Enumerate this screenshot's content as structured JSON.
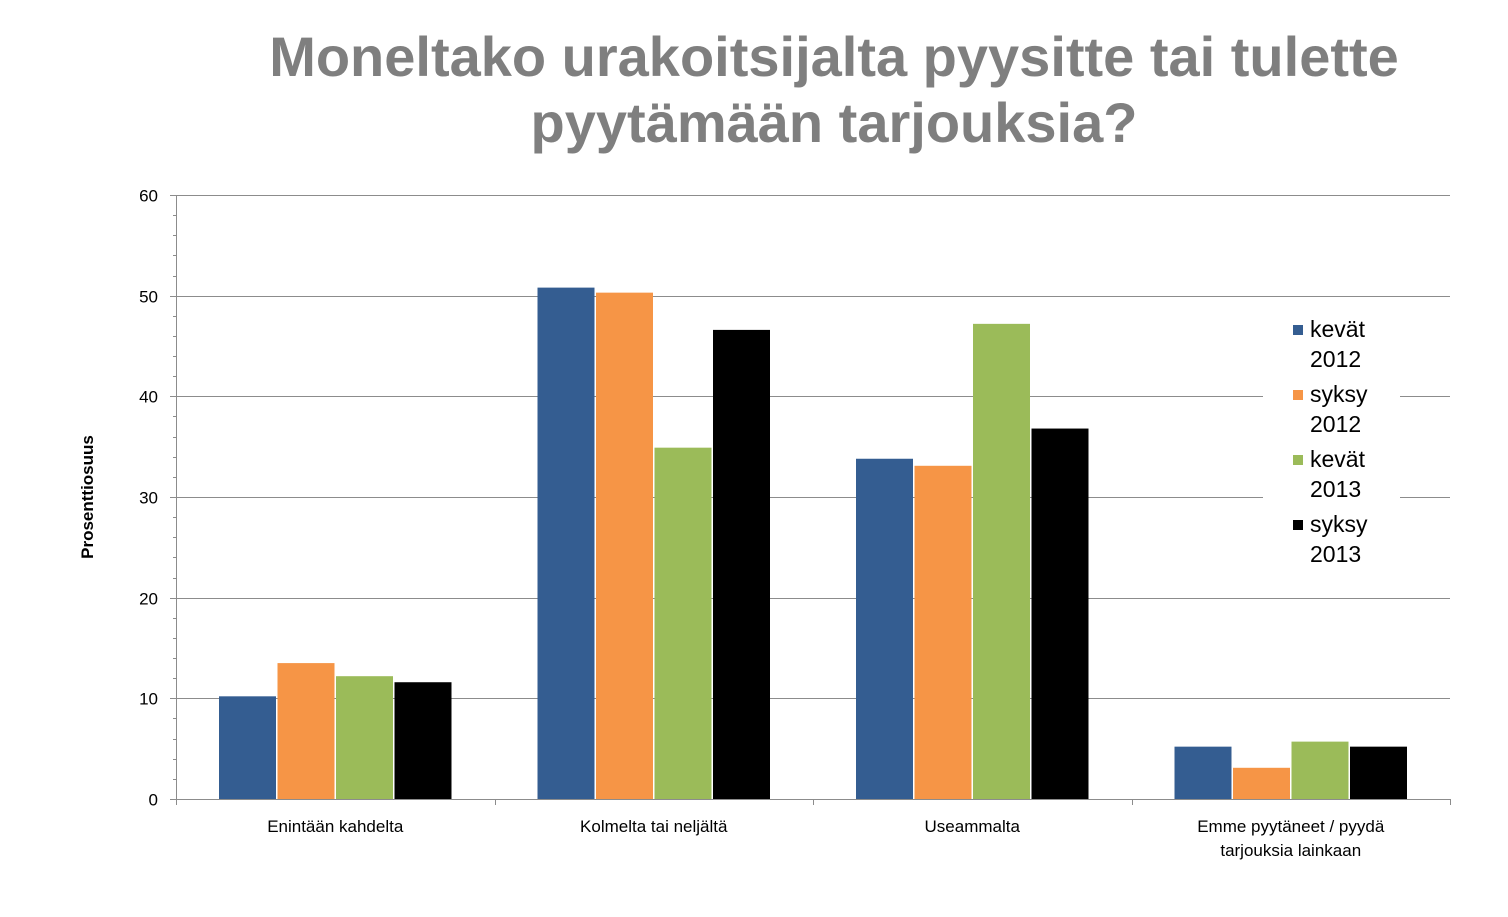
{
  "title_lines": [
    "Moneltako urakoitsijalta pyysitte tai tulette",
    "pyytämään tarjouksia?"
  ],
  "chart_data": {
    "type": "bar",
    "title": "Moneltako urakoitsijalta pyysitte tai tulette pyytämään tarjouksia?",
    "ylabel": "Prosenttiosuus",
    "xlabel": "",
    "ylim": [
      0,
      60
    ],
    "yticks": [
      0,
      10,
      20,
      30,
      40,
      50,
      60
    ],
    "grid": true,
    "legend_position": "right",
    "categories": [
      [
        "Enintään kahdelta"
      ],
      [
        "Kolmelta tai neljältä"
      ],
      [
        "Useammalta"
      ],
      [
        "Emme pyytäneet / pyydä",
        "tarjouksia lainkaan"
      ]
    ],
    "series": [
      {
        "name": [
          "kevät",
          "2012"
        ],
        "color": "#345d91",
        "values": [
          10.2,
          50.8,
          33.8,
          5.2
        ]
      },
      {
        "name": [
          "syksy",
          "2012"
        ],
        "color": "#f69546",
        "values": [
          13.5,
          50.3,
          33.1,
          3.1
        ]
      },
      {
        "name": [
          "kevät",
          "2013"
        ],
        "color": "#9bbb59",
        "values": [
          12.2,
          34.9,
          47.2,
          5.7
        ]
      },
      {
        "name": [
          "syksy",
          "2013"
        ],
        "color": "#000000",
        "values": [
          11.6,
          46.6,
          36.8,
          5.2
        ]
      }
    ]
  }
}
